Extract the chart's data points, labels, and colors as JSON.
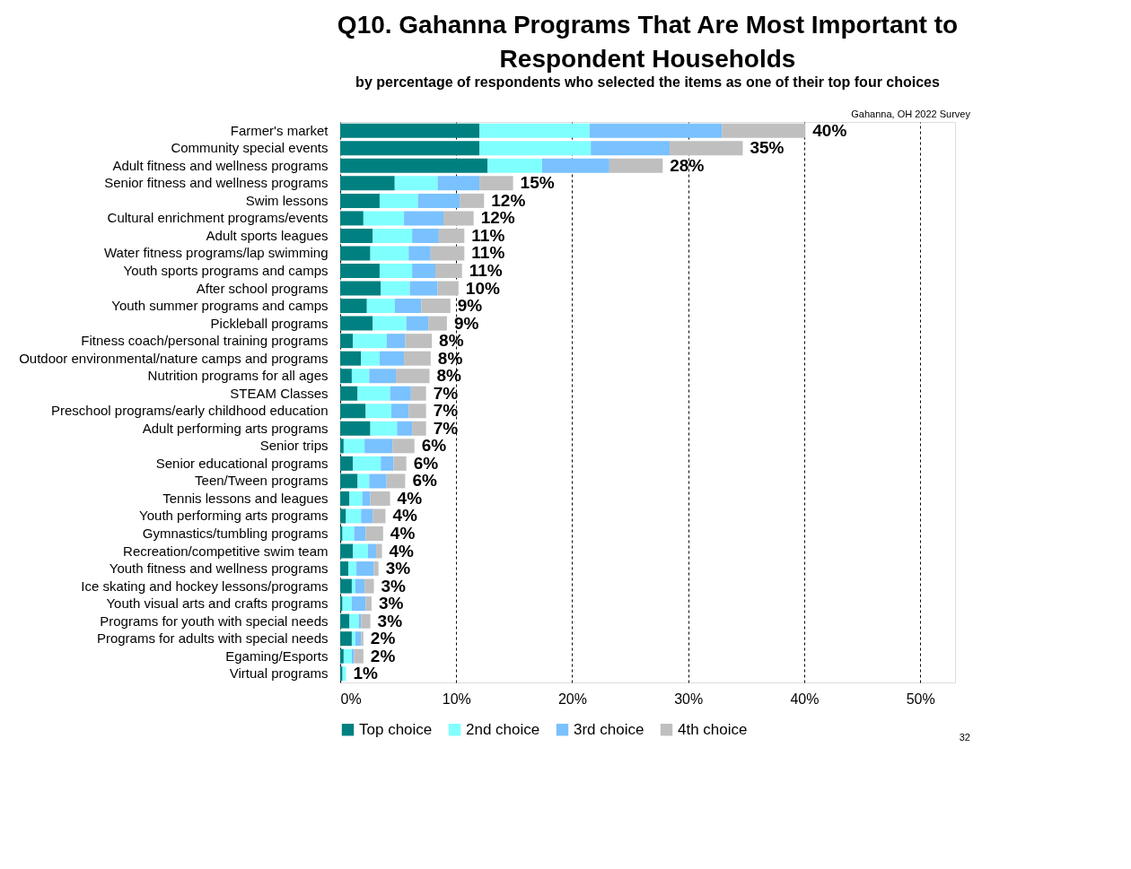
{
  "chart_data": {
    "type": "bar",
    "orientation": "horizontal",
    "stacked": true,
    "title": "Q10. Gahanna Programs That Are Most Important to Respondent Households",
    "subtitle": "by percentage of respondents who selected the items as one of their top four choices",
    "categories": [
      "Farmer's market",
      "Community special events",
      "Adult fitness and wellness programs",
      "Senior fitness and wellness programs",
      "Swim lessons",
      "Cultural enrichment programs/events",
      "Adult sports leagues",
      "Water fitness programs/lap swimming",
      "Youth sports programs and camps",
      "After school programs",
      "Youth summer programs and camps",
      "Pickleball programs",
      "Fitness coach/personal training programs",
      "Outdoor environmental/nature camps and programs",
      "Nutrition programs for all ages",
      "STEAM Classes",
      "Preschool programs/early childhood education",
      "Adult performing arts programs",
      "Senior trips",
      "Senior educational programs",
      "Teen/Tween programs",
      "Tennis lessons and leagues",
      "Youth performing arts programs",
      "Gymnastics/tumbling programs",
      "Recreation/competitive swim team",
      "Youth fitness and wellness programs",
      "Ice skating and hockey lessons/programs",
      "Youth visual arts and crafts programs",
      "Programs for youth with special needs",
      "Programs for adults with special needs",
      "Egaming/Esports",
      "Virtual programs"
    ],
    "series": [
      {
        "name": "Top choice",
        "color": "#008080",
        "values": [
          12.0,
          12.0,
          12.7,
          4.7,
          3.4,
          2.0,
          2.8,
          2.6,
          3.4,
          3.5,
          2.3,
          2.8,
          1.1,
          1.8,
          1.0,
          1.5,
          2.2,
          2.6,
          0.3,
          1.1,
          1.5,
          0.8,
          0.5,
          0.2,
          1.1,
          0.7,
          1.0,
          0.2,
          0.8,
          1.0,
          0.3,
          0.2
        ]
      },
      {
        "name": "2nd choice",
        "color": "#80ffff",
        "values": [
          9.5,
          9.6,
          4.7,
          3.7,
          3.3,
          3.5,
          3.4,
          3.3,
          2.8,
          2.5,
          2.4,
          2.9,
          2.9,
          1.6,
          1.5,
          2.8,
          2.2,
          2.3,
          1.8,
          2.4,
          1.0,
          1.1,
          1.3,
          1.0,
          1.3,
          0.7,
          0.3,
          0.8,
          0.8,
          0.3,
          0.7,
          0.3
        ]
      },
      {
        "name": "3rd choice",
        "color": "#79c1ff",
        "values": [
          11.4,
          6.8,
          5.8,
          3.6,
          3.6,
          3.4,
          2.3,
          1.9,
          2.0,
          2.4,
          2.3,
          1.9,
          1.6,
          2.1,
          2.3,
          1.8,
          1.5,
          1.3,
          2.4,
          1.1,
          1.5,
          0.7,
          1.0,
          1.0,
          0.7,
          1.5,
          0.8,
          1.2,
          0.2,
          0.5,
          0.2,
          0.0
        ]
      },
      {
        "name": "4th choice",
        "color": "#bfbfbf",
        "values": [
          7.2,
          6.3,
          4.6,
          2.9,
          2.1,
          2.6,
          2.2,
          2.9,
          2.3,
          1.8,
          2.5,
          1.6,
          2.3,
          2.3,
          2.9,
          1.3,
          1.5,
          1.2,
          1.9,
          1.1,
          1.6,
          1.7,
          1.1,
          1.5,
          0.5,
          0.4,
          0.8,
          0.5,
          0.8,
          0.2,
          0.8,
          0.0
        ]
      }
    ],
    "totals": [
      "40%",
      "35%",
      "28%",
      "15%",
      "12%",
      "12%",
      "11%",
      "11%",
      "11%",
      "10%",
      "9%",
      "9%",
      "8%",
      "8%",
      "8%",
      "7%",
      "7%",
      "7%",
      "6%",
      "6%",
      "6%",
      "4%",
      "4%",
      "4%",
      "4%",
      "3%",
      "3%",
      "3%",
      "3%",
      "2%",
      "2%",
      "1%"
    ],
    "xlim": [
      0,
      53
    ],
    "xticks": [
      {
        "value": 0,
        "label": "0%"
      },
      {
        "value": 10,
        "label": "10%"
      },
      {
        "value": 20,
        "label": "20%"
      },
      {
        "value": 30,
        "label": "30%"
      },
      {
        "value": 40,
        "label": "40%"
      },
      {
        "value": 50,
        "label": "50%"
      }
    ],
    "grid": "x",
    "line_style": "dashed",
    "legend": "bottom",
    "annotations": [
      "Gahanna, OH 2022 Survey",
      "32"
    ]
  }
}
